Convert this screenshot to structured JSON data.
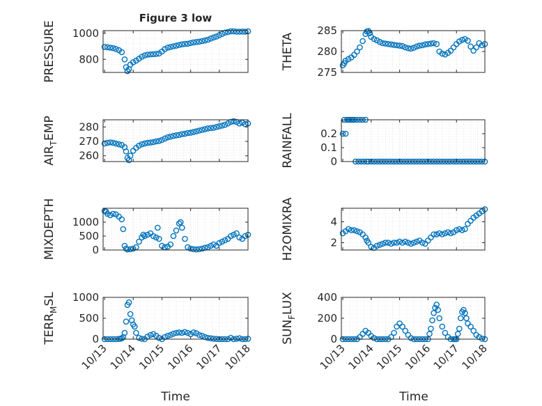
{
  "figure": {
    "title": "Figure 3 low",
    "xlabel": "Time"
  },
  "x_ticks": [
    "10/13",
    "10/14",
    "10/15",
    "10/16",
    "10/17",
    "10/18"
  ],
  "colors": {
    "marker": "#0072BD",
    "axis": "#262626",
    "grid": "#d9d9d9",
    "background": "#ffffff"
  },
  "chart_data": [
    {
      "type": "scatter",
      "title": "Figure 3 low",
      "ylabel": "PRESSURE",
      "xlabel": "",
      "xlim": [
        -0.05,
        5.0
      ],
      "ylim": [
        700,
        1020
      ],
      "yticks": [
        800,
        1000
      ],
      "grid": true,
      "x": [
        0.0,
        0.1,
        0.2,
        0.3,
        0.4,
        0.5,
        0.6,
        0.7,
        0.75,
        0.8,
        0.85,
        0.9,
        1.0,
        1.1,
        1.2,
        1.3,
        1.4,
        1.5,
        1.6,
        1.7,
        1.8,
        1.9,
        2.0,
        2.1,
        2.2,
        2.3,
        2.4,
        2.5,
        2.6,
        2.7,
        2.8,
        2.9,
        3.0,
        3.1,
        3.2,
        3.3,
        3.4,
        3.5,
        3.6,
        3.7,
        3.8,
        3.9,
        4.0,
        4.1,
        4.2,
        4.3,
        4.4,
        4.5,
        4.6,
        4.7,
        4.8,
        4.9,
        5.0
      ],
      "y": [
        895,
        893,
        890,
        886,
        880,
        870,
        855,
        800,
        740,
        710,
        725,
        760,
        778,
        790,
        805,
        820,
        830,
        836,
        838,
        840,
        842,
        845,
        860,
        878,
        890,
        895,
        900,
        905,
        910,
        915,
        918,
        920,
        925,
        930,
        933,
        936,
        940,
        945,
        950,
        960,
        968,
        975,
        985,
        995,
        1005,
        1010,
        1015,
        1015,
        1012,
        1012,
        1013,
        1012,
        1015
      ]
    },
    {
      "type": "scatter",
      "title": "",
      "ylabel": "THETA",
      "xlabel": "",
      "xlim": [
        -0.05,
        5.0
      ],
      "ylim": [
        275,
        285
      ],
      "yticks": [
        275,
        280,
        285
      ],
      "grid": true,
      "x": [
        0.0,
        0.05,
        0.1,
        0.2,
        0.3,
        0.4,
        0.5,
        0.6,
        0.7,
        0.8,
        0.85,
        0.9,
        0.95,
        1.0,
        1.1,
        1.2,
        1.3,
        1.4,
        1.5,
        1.6,
        1.7,
        1.8,
        1.9,
        2.0,
        2.1,
        2.2,
        2.3,
        2.4,
        2.5,
        2.6,
        2.7,
        2.8,
        2.9,
        3.0,
        3.1,
        3.2,
        3.3,
        3.4,
        3.5,
        3.6,
        3.7,
        3.8,
        3.9,
        4.0,
        4.1,
        4.2,
        4.3,
        4.4,
        4.5,
        4.6,
        4.7,
        4.8,
        4.9,
        5.0
      ],
      "y": [
        276.7,
        277.2,
        277.8,
        278.2,
        278.6,
        279.2,
        280.0,
        281.0,
        282.5,
        284.2,
        284.8,
        284.9,
        284.4,
        283.5,
        283.0,
        282.7,
        282.3,
        282.0,
        281.9,
        281.8,
        281.7,
        281.6,
        281.5,
        281.4,
        281.3,
        281.0,
        280.8,
        280.7,
        280.9,
        281.2,
        281.4,
        281.5,
        281.7,
        281.8,
        281.9,
        282.0,
        281.8,
        280.0,
        279.5,
        279.3,
        279.7,
        280.2,
        281.0,
        281.8,
        282.4,
        282.8,
        283.0,
        282.6,
        281.2,
        280.2,
        281.0,
        282.0,
        281.5,
        281.8
      ]
    },
    {
      "type": "scatter",
      "title": "",
      "ylabel": "AIR_TEMP",
      "xlabel": "",
      "xlim": [
        -0.05,
        5.0
      ],
      "ylim": [
        256,
        285
      ],
      "yticks": [
        260,
        270,
        280
      ],
      "grid": true,
      "x": [
        0.0,
        0.1,
        0.2,
        0.3,
        0.4,
        0.5,
        0.6,
        0.7,
        0.75,
        0.8,
        0.85,
        0.9,
        1.0,
        1.1,
        1.2,
        1.3,
        1.4,
        1.5,
        1.6,
        1.7,
        1.8,
        1.9,
        2.0,
        2.1,
        2.2,
        2.3,
        2.4,
        2.5,
        2.6,
        2.7,
        2.8,
        2.9,
        3.0,
        3.1,
        3.2,
        3.3,
        3.4,
        3.5,
        3.6,
        3.7,
        3.8,
        3.9,
        4.0,
        4.1,
        4.2,
        4.3,
        4.4,
        4.5,
        4.6,
        4.7,
        4.8,
        4.9,
        5.0
      ],
      "y": [
        268.5,
        269.0,
        269.3,
        269.0,
        268.5,
        268.0,
        267.5,
        266.0,
        263.0,
        258.5,
        257.0,
        260.0,
        263.5,
        265.5,
        267.0,
        268.0,
        268.5,
        269.0,
        269.2,
        269.5,
        270.0,
        270.3,
        271.0,
        272.0,
        272.8,
        273.3,
        273.8,
        274.2,
        274.5,
        275.0,
        275.3,
        275.8,
        276.0,
        276.5,
        277.0,
        277.5,
        278.0,
        278.5,
        279.0,
        279.3,
        279.5,
        280.0,
        280.5,
        281.0,
        281.5,
        282.5,
        283.5,
        284.0,
        283.5,
        282.5,
        283.0,
        282.0,
        282.5
      ]
    },
    {
      "type": "scatter",
      "title": "",
      "ylabel": "RAINFALL",
      "xlabel": "",
      "xlim": [
        -0.05,
        5.0
      ],
      "ylim": [
        0,
        0.3
      ],
      "yticks": [
        0,
        0.1,
        0.2
      ],
      "grid": true,
      "x": [
        0.0,
        0.05,
        0.1,
        0.15,
        0.2,
        0.25,
        0.3,
        0.35,
        0.4,
        0.45,
        0.5,
        0.55,
        0.6,
        0.65,
        0.7,
        0.75,
        0.8,
        0.85,
        0.9,
        1.0,
        1.1,
        1.2,
        1.3,
        1.4,
        1.5,
        1.6,
        1.7,
        1.8,
        1.9,
        2.0,
        2.1,
        2.2,
        2.3,
        2.4,
        2.5,
        2.6,
        2.7,
        2.8,
        2.9,
        3.0,
        3.1,
        3.2,
        3.3,
        3.4,
        3.5,
        3.6,
        3.7,
        3.8,
        3.9,
        4.0,
        4.1,
        4.2,
        4.3,
        4.4,
        4.5,
        4.6,
        4.7,
        4.8,
        4.9,
        5.0
      ],
      "y": [
        0.2,
        0.3,
        0.2,
        0.3,
        0.3,
        0.3,
        0.3,
        0.3,
        0.3,
        0.0,
        0.3,
        0.0,
        0.3,
        0.0,
        0.3,
        0.0,
        0.3,
        0.0,
        0.0,
        0.0,
        0.0,
        0.0,
        0.0,
        0.0,
        0.0,
        0.0,
        0.0,
        0.0,
        0.0,
        0.0,
        0.0,
        0.0,
        0.0,
        0.0,
        0.0,
        0.0,
        0.0,
        0.0,
        0.0,
        0.0,
        0.0,
        0.0,
        0.0,
        0.0,
        0.0,
        0.0,
        0.0,
        0.0,
        0.0,
        0.0,
        0.0,
        0.0,
        0.0,
        0.0,
        0.0,
        0.0,
        0.0,
        0.0,
        0.0,
        0.0
      ]
    },
    {
      "type": "scatter",
      "title": "",
      "ylabel": "MIXDEPTH",
      "xlabel": "",
      "xlim": [
        -0.05,
        5.0
      ],
      "ylim": [
        0,
        1500
      ],
      "yticks": [
        0,
        500,
        1000
      ],
      "grid": true,
      "x": [
        0.0,
        0.05,
        0.1,
        0.2,
        0.3,
        0.4,
        0.5,
        0.6,
        0.65,
        0.7,
        0.75,
        0.8,
        0.9,
        1.0,
        1.1,
        1.2,
        1.3,
        1.35,
        1.4,
        1.5,
        1.6,
        1.7,
        1.8,
        1.85,
        1.9,
        2.0,
        2.1,
        2.2,
        2.3,
        2.4,
        2.5,
        2.6,
        2.65,
        2.7,
        2.8,
        2.9,
        3.0,
        3.1,
        3.2,
        3.3,
        3.4,
        3.5,
        3.6,
        3.7,
        3.8,
        3.9,
        4.0,
        4.1,
        4.2,
        4.3,
        4.4,
        4.5,
        4.6,
        4.7,
        4.8,
        4.9,
        5.0
      ],
      "y": [
        1400,
        1380,
        1300,
        1250,
        1300,
        1280,
        1200,
        1100,
        750,
        150,
        50,
        20,
        30,
        50,
        100,
        300,
        450,
        550,
        500,
        550,
        600,
        500,
        450,
        800,
        400,
        150,
        100,
        120,
        200,
        500,
        700,
        950,
        1000,
        800,
        400,
        100,
        50,
        30,
        20,
        30,
        50,
        80,
        100,
        150,
        200,
        150,
        250,
        300,
        350,
        400,
        500,
        550,
        600,
        450,
        400,
        500,
        550
      ]
    },
    {
      "type": "scatter",
      "title": "",
      "ylabel": "H2OMIXRA",
      "xlabel": "",
      "xlim": [
        -0.05,
        5.0
      ],
      "ylim": [
        1.3,
        5.3
      ],
      "yticks": [
        2,
        4
      ],
      "grid": true,
      "x": [
        0.0,
        0.1,
        0.2,
        0.3,
        0.4,
        0.5,
        0.6,
        0.7,
        0.8,
        0.85,
        0.9,
        1.0,
        1.1,
        1.2,
        1.3,
        1.4,
        1.5,
        1.6,
        1.7,
        1.8,
        1.9,
        2.0,
        2.1,
        2.2,
        2.3,
        2.4,
        2.5,
        2.6,
        2.7,
        2.8,
        2.9,
        3.0,
        3.1,
        3.2,
        3.3,
        3.4,
        3.5,
        3.6,
        3.7,
        3.8,
        3.9,
        4.0,
        4.1,
        4.2,
        4.3,
        4.4,
        4.5,
        4.6,
        4.7,
        4.8,
        4.9,
        5.0
      ],
      "y": [
        2.9,
        3.1,
        3.3,
        3.2,
        3.2,
        3.1,
        3.0,
        2.8,
        2.5,
        2.2,
        2.0,
        1.6,
        1.5,
        1.7,
        1.8,
        1.9,
        2.0,
        2.0,
        1.9,
        2.0,
        2.0,
        2.1,
        2.0,
        2.1,
        2.0,
        1.9,
        2.0,
        2.1,
        2.2,
        2.0,
        1.9,
        2.2,
        2.5,
        2.8,
        2.8,
        2.9,
        2.8,
        2.9,
        3.0,
        2.9,
        3.0,
        3.2,
        3.3,
        3.2,
        3.3,
        3.8,
        4.1,
        4.4,
        4.6,
        4.8,
        5.0,
        5.2
      ]
    },
    {
      "type": "scatter",
      "title": "",
      "ylabel": "TERR_MSL",
      "xlabel": "Time",
      "xlim": [
        -0.05,
        5.0
      ],
      "ylim": [
        0,
        1000
      ],
      "yticks": [
        0,
        500,
        1000
      ],
      "grid": true,
      "x": [
        0.0,
        0.1,
        0.2,
        0.3,
        0.4,
        0.5,
        0.55,
        0.6,
        0.65,
        0.7,
        0.75,
        0.8,
        0.85,
        0.9,
        0.95,
        1.0,
        1.05,
        1.1,
        1.2,
        1.3,
        1.4,
        1.5,
        1.6,
        1.7,
        1.8,
        1.9,
        2.0,
        2.1,
        2.2,
        2.3,
        2.4,
        2.5,
        2.6,
        2.7,
        2.8,
        2.9,
        3.0,
        3.1,
        3.2,
        3.3,
        3.4,
        3.5,
        3.6,
        3.7,
        3.8,
        3.9,
        4.0,
        4.1,
        4.2,
        4.3,
        4.4,
        4.5,
        4.6,
        4.7,
        4.8,
        4.9,
        5.0
      ],
      "y": [
        0,
        0,
        0,
        0,
        0,
        5,
        10,
        20,
        50,
        150,
        420,
        820,
        880,
        600,
        450,
        350,
        300,
        150,
        30,
        10,
        0,
        60,
        100,
        120,
        80,
        30,
        0,
        50,
        80,
        100,
        130,
        150,
        160,
        150,
        170,
        150,
        120,
        160,
        140,
        100,
        80,
        50,
        30,
        20,
        10,
        5,
        0,
        0,
        0,
        0,
        30,
        0,
        10,
        20,
        0,
        0,
        10
      ]
    },
    {
      "type": "scatter",
      "title": "",
      "ylabel": "SUN_FLUX",
      "xlabel": "Time",
      "xlim": [
        -0.05,
        5.0
      ],
      "ylim": [
        0,
        400
      ],
      "yticks": [
        0,
        200,
        400
      ],
      "grid": true,
      "x": [
        0.0,
        0.1,
        0.2,
        0.3,
        0.4,
        0.5,
        0.6,
        0.7,
        0.8,
        0.9,
        1.0,
        1.1,
        1.2,
        1.3,
        1.4,
        1.5,
        1.6,
        1.7,
        1.8,
        1.9,
        2.0,
        2.1,
        2.2,
        2.3,
        2.4,
        2.5,
        2.6,
        2.7,
        2.8,
        2.9,
        3.0,
        3.05,
        3.1,
        3.15,
        3.2,
        3.25,
        3.3,
        3.35,
        3.4,
        3.5,
        3.6,
        3.7,
        3.8,
        3.9,
        3.95,
        4.0,
        4.05,
        4.1,
        4.15,
        4.2,
        4.25,
        4.3,
        4.35,
        4.4,
        4.5,
        4.6,
        4.7,
        4.8,
        4.9,
        5.0
      ],
      "y": [
        0,
        0,
        0,
        0,
        0,
        0,
        20,
        50,
        80,
        60,
        30,
        10,
        0,
        0,
        0,
        0,
        0,
        20,
        60,
        120,
        150,
        120,
        80,
        40,
        10,
        0,
        0,
        0,
        0,
        0,
        0,
        50,
        100,
        180,
        250,
        300,
        330,
        280,
        200,
        120,
        60,
        20,
        0,
        0,
        0,
        0,
        50,
        100,
        200,
        260,
        280,
        250,
        200,
        150,
        120,
        80,
        40,
        20,
        5,
        0
      ]
    }
  ]
}
